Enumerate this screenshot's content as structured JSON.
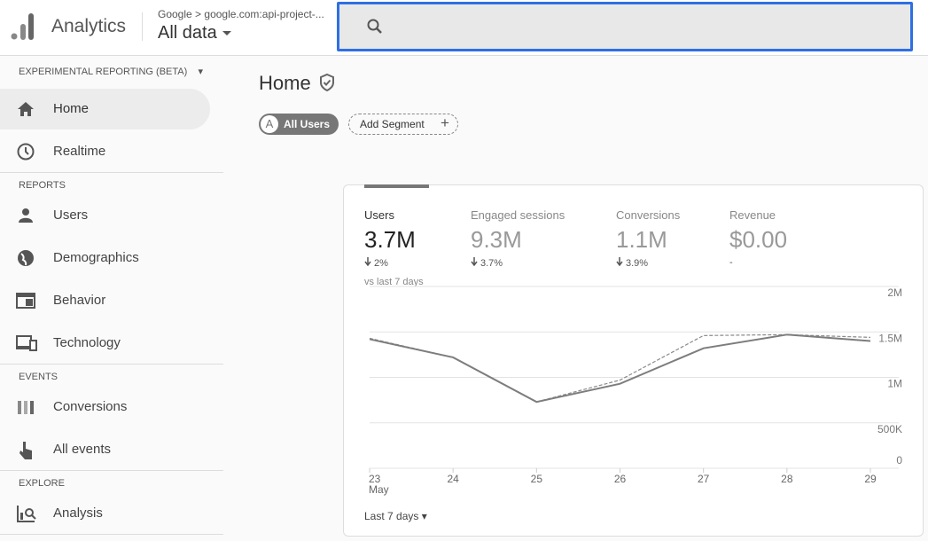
{
  "header": {
    "product": "Analytics",
    "breadcrumb": "Google",
    "property": "google.com:api-project-...",
    "view": "All data"
  },
  "sidebar": {
    "mode": "EXPERIMENTAL REPORTING (BETA)",
    "top_items": [
      "Home",
      "Realtime"
    ],
    "sections": [
      {
        "title": "REPORTS",
        "items": [
          "Users",
          "Demographics",
          "Behavior",
          "Technology"
        ]
      },
      {
        "title": "EVENTS",
        "items": [
          "Conversions",
          "All events"
        ]
      },
      {
        "title": "EXPLORE",
        "items": [
          "Analysis"
        ]
      }
    ]
  },
  "main": {
    "title": "Home",
    "segment_letter": "A",
    "segments": [
      "All Users",
      "Add Segment"
    ]
  },
  "card": {
    "metrics": [
      {
        "label": "Users",
        "value": "3.7M",
        "change": "2%"
      },
      {
        "label": "Engaged sessions",
        "value": "9.3M",
        "change": "3.7%"
      },
      {
        "label": "Conversions",
        "value": "1.1M",
        "change": "3.9%"
      },
      {
        "label": "Revenue",
        "value": "$0.00",
        "change": "-"
      }
    ],
    "comparison": "vs last 7 days",
    "range": "Last 7 days",
    "chart": {
      "type": "line",
      "categories": [
        "23",
        "24",
        "25",
        "26",
        "27",
        "28",
        "29"
      ],
      "x_sublabel": "May",
      "series": [
        {
          "color": "#7d7d7d",
          "dashed": false,
          "values": [
            1420000,
            1220000,
            730000,
            930000,
            1320000,
            1470000,
            1400000
          ]
        },
        {
          "color": "#8a8a8a",
          "dashed": true,
          "values": [
            1430000,
            1220000,
            730000,
            970000,
            1460000,
            1470000,
            1440000
          ]
        }
      ],
      "ylim": [
        0,
        2000000
      ],
      "yticks": [
        0,
        {
          "value": 500000,
          "label": "500K"
        },
        {
          "value": 1000000,
          "label": "1M"
        },
        {
          "value": 1500000,
          "label": "1.5M"
        },
        {
          "value": 2000000,
          "label": "2M"
        }
      ],
      "grid": true
    }
  }
}
